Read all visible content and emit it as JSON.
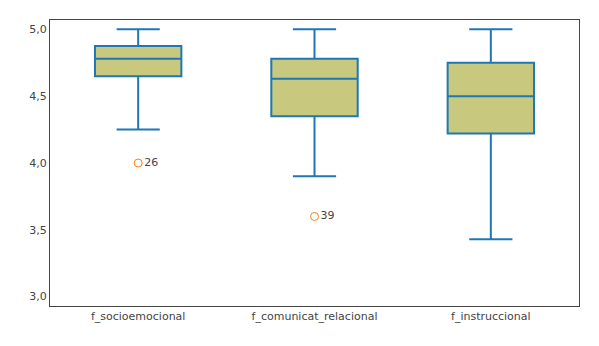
{
  "chart_data": {
    "type": "box",
    "categories": [
      "f_socioemocional",
      "f_comunicat_relacional",
      "f_instruccional"
    ],
    "boxes": [
      {
        "q1": 4.65,
        "median": 4.78,
        "q3": 4.875,
        "whisker_low": 4.25,
        "whisker_high": 5.0,
        "outliers": [
          4.0
        ],
        "outlier_labels": [
          "26"
        ]
      },
      {
        "q1": 4.35,
        "median": 4.63,
        "q3": 4.78,
        "whisker_low": 3.9,
        "whisker_high": 5.0,
        "outliers": [
          3.6
        ],
        "outlier_labels": [
          "39"
        ]
      },
      {
        "q1": 4.22,
        "median": 4.5,
        "q3": 4.75,
        "whisker_low": 3.43,
        "whisker_high": 5.0,
        "outliers": [],
        "outlier_labels": []
      }
    ],
    "ylim": [
      2.93,
      5.07
    ],
    "yticks": [
      {
        "value": 3.0,
        "label": "3,0"
      },
      {
        "value": 3.5,
        "label": "3,5"
      },
      {
        "value": 4.0,
        "label": "4,0"
      },
      {
        "value": 4.5,
        "label": "4,5"
      },
      {
        "value": 5.0,
        "label": "5,0"
      }
    ],
    "color": "#c8c87e",
    "grid": false
  }
}
